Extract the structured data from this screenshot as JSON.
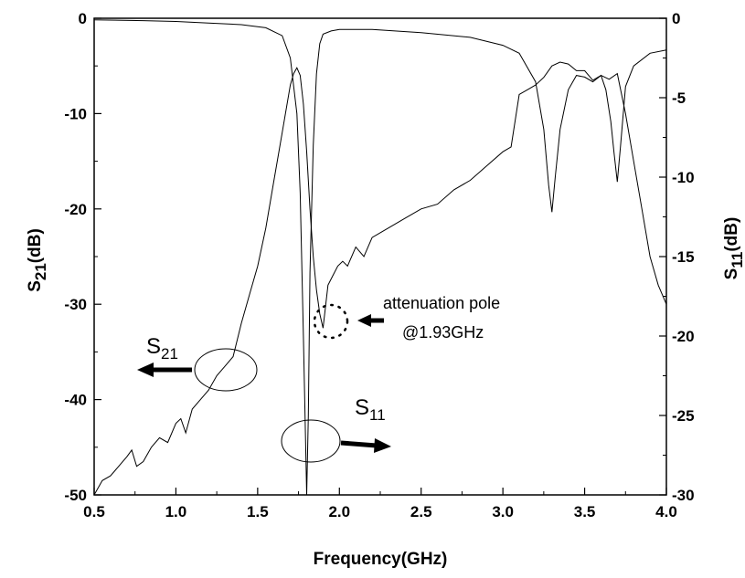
{
  "chart_data": {
    "type": "line",
    "xlabel": "Frequency(GHz)",
    "x_range": [
      0.5,
      4.0
    ],
    "x_ticks": [
      "0.5",
      "1.0",
      "1.5",
      "2.0",
      "2.5",
      "3.0",
      "3.5",
      "4.0"
    ],
    "y_left": {
      "label_main": "S",
      "label_sub": "21",
      "label_tail": "(dB)",
      "range": [
        -50,
        0
      ],
      "ticks": [
        "0",
        "-10",
        "-20",
        "-30",
        "-40",
        "-50"
      ]
    },
    "y_right": {
      "label_main": "S",
      "label_sub": "11",
      "label_tail": "(dB)",
      "range": [
        -30,
        0
      ],
      "ticks": [
        "0",
        "-5",
        "-10",
        "-15",
        "-20",
        "-25",
        "-30"
      ]
    },
    "series": [
      {
        "name": "S21",
        "axis": "left",
        "x": [
          0.5,
          0.55,
          0.6,
          0.7,
          0.73,
          0.76,
          0.8,
          0.85,
          0.9,
          0.95,
          1.0,
          1.03,
          1.06,
          1.1,
          1.15,
          1.2,
          1.25,
          1.3,
          1.35,
          1.4,
          1.45,
          1.5,
          1.55,
          1.6,
          1.65,
          1.7,
          1.72,
          1.74,
          1.76,
          1.78,
          1.8,
          1.82,
          1.84,
          1.86,
          1.88,
          1.9,
          1.93,
          1.96,
          1.99,
          2.02,
          2.05,
          2.1,
          2.15,
          2.2,
          2.3,
          2.4,
          2.5,
          2.6,
          2.7,
          2.8,
          2.9,
          3.0,
          3.05,
          3.1,
          3.15,
          3.2,
          3.25,
          3.3,
          3.35,
          3.4,
          3.45,
          3.5,
          3.55,
          3.6,
          3.65,
          3.7,
          3.75,
          3.8,
          3.85,
          3.9,
          3.95,
          4.0
        ],
        "y": [
          -50,
          -48.5,
          -48,
          -46,
          -45.3,
          -47,
          -46.5,
          -45,
          -44,
          -44.5,
          -42.5,
          -42,
          -43.5,
          -41,
          -40,
          -39,
          -37.5,
          -36.5,
          -35.5,
          -32,
          -29,
          -26,
          -22,
          -17,
          -12,
          -7,
          -5.8,
          -5.2,
          -6,
          -9,
          -14,
          -20,
          -25,
          -28.5,
          -31,
          -32.5,
          -28,
          -27,
          -26,
          -25.5,
          -26,
          -24,
          -25,
          -23,
          -22,
          -21,
          -20,
          -19.5,
          -18,
          -17,
          -15.5,
          -14,
          -13.5,
          -8,
          -7.5,
          -7,
          -6.2,
          -5,
          -4.6,
          -4.8,
          -5.5,
          -5.5,
          -6.5,
          -6,
          -6.4,
          -5.8,
          -10,
          -15,
          -20,
          -25,
          -28,
          -30
        ]
      },
      {
        "name": "S11",
        "axis": "right",
        "x": [
          0.5,
          0.8,
          1.0,
          1.2,
          1.4,
          1.55,
          1.65,
          1.7,
          1.74,
          1.76,
          1.78,
          1.79,
          1.8,
          1.81,
          1.82,
          1.84,
          1.86,
          1.88,
          1.9,
          1.95,
          2.0,
          2.2,
          2.5,
          2.8,
          3.0,
          3.1,
          3.2,
          3.25,
          3.28,
          3.3,
          3.32,
          3.35,
          3.4,
          3.45,
          3.5,
          3.55,
          3.6,
          3.63,
          3.66,
          3.68,
          3.7,
          3.72,
          3.75,
          3.8,
          3.9,
          4.0
        ],
        "y": [
          -0.1,
          -0.15,
          -0.2,
          -0.3,
          -0.4,
          -0.6,
          -1.1,
          -2.5,
          -6,
          -11,
          -20,
          -25,
          -30,
          -25,
          -16,
          -8,
          -3.5,
          -1.6,
          -1.0,
          -0.8,
          -0.7,
          -0.7,
          -0.9,
          -1.2,
          -1.7,
          -2.2,
          -4.0,
          -7.0,
          -10.5,
          -12.2,
          -10,
          -7,
          -4.5,
          -3.6,
          -3.7,
          -4.0,
          -3.6,
          -4.5,
          -6.5,
          -8.5,
          -10.3,
          -8,
          -4.3,
          -3.0,
          -2.2,
          -2.0
        ]
      }
    ],
    "annotations": {
      "s21_label": {
        "main": "S",
        "sub": "21"
      },
      "s11_label": {
        "main": "S",
        "sub": "11"
      },
      "pole_line1": "attenuation pole",
      "pole_line2": "@1.93GHz"
    }
  }
}
